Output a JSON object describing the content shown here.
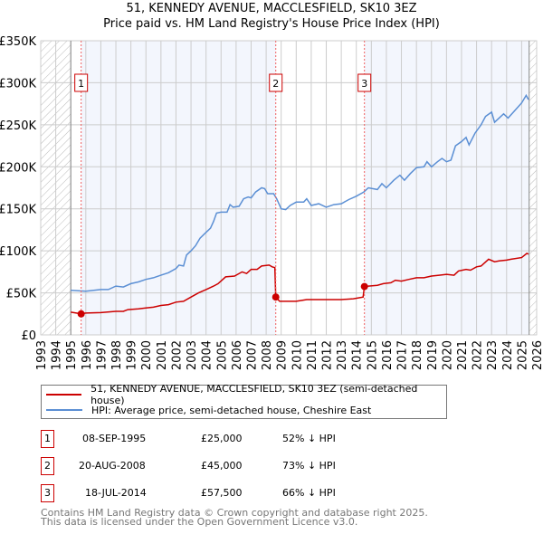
{
  "title_line1": "51, KENNEDY AVENUE, MACCLESFIELD, SK10 3EZ",
  "title_line2": "Price paid vs. HM Land Registry's House Price Index (HPI)",
  "legend": [
    {
      "label": "51, KENNEDY AVENUE, MACCLESFIELD, SK10 3EZ (semi-detached house)",
      "color": "#cc0000"
    },
    {
      "label": "HPI: Average price, semi-detached house, Cheshire East",
      "color": "#5b8fd4"
    }
  ],
  "sales": [
    {
      "num": "1",
      "date": "08-SEP-1995",
      "price": "£25,000",
      "hpi": "52% ↓ HPI"
    },
    {
      "num": "2",
      "date": "20-AUG-2008",
      "price": "£45,000",
      "hpi": "73% ↓ HPI"
    },
    {
      "num": "3",
      "date": "18-JUL-2014",
      "price": "£57,500",
      "hpi": "66% ↓ HPI"
    }
  ],
  "footer": [
    "Contains HM Land Registry data © Crown copyright and database right 2025.",
    "This data is licensed under the Open Government Licence v3.0."
  ],
  "chart_data": {
    "type": "line",
    "xlim": [
      1993,
      2026
    ],
    "ylim": [
      0,
      350000
    ],
    "yticks": [
      0,
      50000,
      100000,
      150000,
      200000,
      250000,
      300000,
      350000
    ],
    "ytick_labels": [
      "£0",
      "£50K",
      "£100K",
      "£150K",
      "£200K",
      "£250K",
      "£300K",
      "£350K"
    ],
    "xticks": [
      1993,
      1994,
      1995,
      1996,
      1997,
      1998,
      1999,
      2000,
      2001,
      2002,
      2003,
      2004,
      2005,
      2006,
      2007,
      2008,
      2009,
      2010,
      2011,
      2012,
      2013,
      2014,
      2015,
      2016,
      2017,
      2018,
      2019,
      2020,
      2021,
      2022,
      2023,
      2024,
      2025,
      2026
    ],
    "grid": true,
    "hatched_ranges": [
      [
        1993,
        1995
      ],
      [
        2025.5,
        2026
      ]
    ],
    "shaded_ranges": [
      [
        1995.69,
        2008.64
      ],
      [
        2014.54,
        2025.5
      ]
    ],
    "sale_points": [
      {
        "label": "1",
        "x": 1995.69,
        "y": 25000
      },
      {
        "label": "2",
        "x": 2008.64,
        "y": 45000
      },
      {
        "label": "3",
        "x": 2014.54,
        "y": 57500
      }
    ],
    "series": [
      {
        "name": "HPI: Average price, semi-detached house, Cheshire East",
        "color": "#5b8fd4",
        "x": [
          1995.0,
          1996.0,
          1997.0,
          1997.5,
          1998.0,
          1998.5,
          1999.0,
          1999.5,
          2000.0,
          2000.5,
          2001.0,
          2001.5,
          2002.0,
          2002.2,
          2002.5,
          2002.7,
          2003.0,
          2003.3,
          2003.6,
          2004.0,
          2004.3,
          2004.5,
          2004.7,
          2005.0,
          2005.4,
          2005.6,
          2005.8,
          2006.2,
          2006.5,
          2006.8,
          2007.0,
          2007.3,
          2007.7,
          2007.9,
          2008.1,
          2008.5,
          2008.7,
          2009.0,
          2009.3,
          2009.6,
          2010.0,
          2010.5,
          2010.7,
          2011.0,
          2011.5,
          2012.0,
          2012.5,
          2013.0,
          2013.5,
          2014.0,
          2014.5,
          2014.8,
          2015.4,
          2015.7,
          2016.0,
          2016.5,
          2016.9,
          2017.2,
          2017.6,
          2018.0,
          2018.5,
          2018.7,
          2019.0,
          2019.4,
          2019.7,
          2020.0,
          2020.3,
          2020.6,
          2021.0,
          2021.3,
          2021.5,
          2021.9,
          2022.3,
          2022.6,
          2023.0,
          2023.2,
          2023.5,
          2023.8,
          2024.1,
          2024.5,
          2025.0,
          2025.3,
          2025.45
        ],
        "y": [
          53000,
          52000,
          54000,
          54000,
          58000,
          57000,
          61000,
          63000,
          66000,
          68000,
          71000,
          74000,
          79000,
          83000,
          82000,
          95000,
          100000,
          106000,
          115000,
          122000,
          127000,
          135000,
          145000,
          146000,
          146000,
          155000,
          152000,
          153000,
          162000,
          164000,
          163000,
          170000,
          175000,
          174000,
          168000,
          168000,
          162000,
          150000,
          149000,
          154000,
          158000,
          158000,
          162000,
          154000,
          156000,
          152000,
          155000,
          156000,
          161000,
          165000,
          170000,
          175000,
          173000,
          180000,
          175000,
          184000,
          190000,
          184000,
          192000,
          199000,
          200000,
          206000,
          200000,
          206000,
          210000,
          206000,
          208000,
          225000,
          230000,
          235000,
          226000,
          240000,
          250000,
          260000,
          265000,
          253000,
          258000,
          263000,
          258000,
          266000,
          276000,
          285000,
          280000
        ]
      },
      {
        "name": "51, KENNEDY AVENUE, MACCLESFIELD, SK10 3EZ (semi-detached house)",
        "color": "#cc0000",
        "x": [
          1995.0,
          1995.69,
          1996.0,
          1997.0,
          1998.0,
          1998.5,
          1998.8,
          1999.5,
          2000.0,
          2000.5,
          2001.0,
          2001.5,
          2002.0,
          2002.5,
          2003.0,
          2003.5,
          2004.0,
          2004.5,
          2004.8,
          2005.3,
          2005.9,
          2006.4,
          2006.7,
          2007.0,
          2007.4,
          2007.7,
          2008.2,
          2008.4,
          2008.58,
          2008.64,
          2008.9,
          2009.5,
          2010.0,
          2010.7,
          2011.0,
          2013.0,
          2013.8,
          2014.45,
          2014.54,
          2014.8,
          2015.4,
          2015.8,
          2016.3,
          2016.6,
          2017.0,
          2017.5,
          2018.0,
          2018.5,
          2019.0,
          2019.5,
          2020.0,
          2020.5,
          2020.8,
          2021.3,
          2021.6,
          2022.0,
          2022.3,
          2022.8,
          2023.2,
          2023.5,
          2024.0,
          2024.3,
          2025.0,
          2025.35,
          2025.45
        ],
        "y": [
          27000,
          25000,
          26000,
          26500,
          28000,
          28000,
          30000,
          31000,
          32000,
          33000,
          35000,
          36000,
          39000,
          40000,
          45000,
          50000,
          54000,
          58000,
          61000,
          69000,
          70000,
          75000,
          73000,
          78000,
          78000,
          82000,
          83000,
          81000,
          80000,
          45000,
          40000,
          40000,
          40000,
          42000,
          42000,
          42000,
          43000,
          45000,
          57500,
          58000,
          59000,
          61000,
          62000,
          65000,
          64000,
          66000,
          68000,
          68000,
          70000,
          71000,
          72000,
          71000,
          76000,
          78000,
          77000,
          81000,
          82000,
          90000,
          87000,
          88000,
          89000,
          90000,
          92000,
          97000,
          96000
        ]
      }
    ]
  }
}
